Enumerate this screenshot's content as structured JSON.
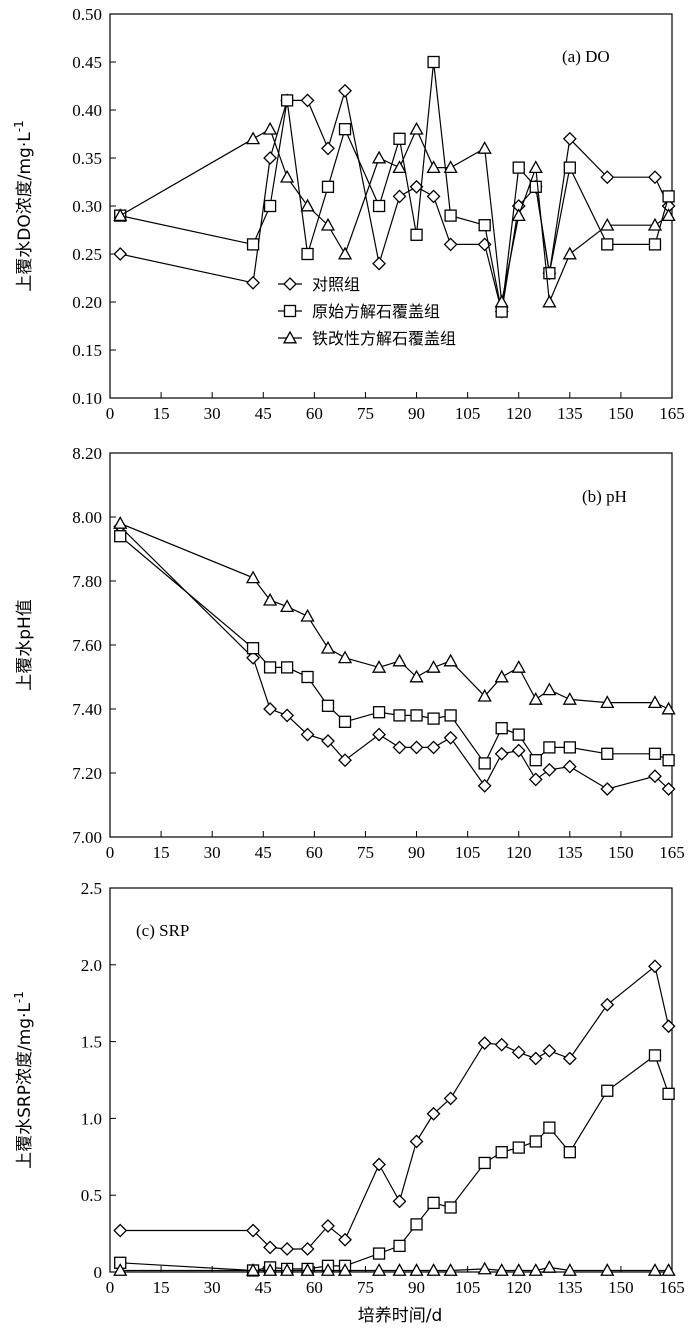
{
  "xlabel": "培养时间/d",
  "chart_data": [
    {
      "type": "line",
      "annotation": "(a) DO",
      "ylabel": "上覆水DO浓度/mg·L",
      "ylabel_sup": "-1",
      "xlim": [
        0,
        165
      ],
      "ylim": [
        0.1,
        0.5
      ],
      "x_ticks": [
        0,
        15,
        30,
        45,
        60,
        75,
        90,
        105,
        120,
        135,
        150,
        165
      ],
      "y_ticks": [
        "0.10",
        "0.15",
        "0.20",
        "0.25",
        "0.30",
        "0.35",
        "0.40",
        "0.45",
        "0.50"
      ],
      "legend": "inside, lower-center",
      "series": [
        {
          "name": "对照组",
          "marker": "diamond",
          "x": [
            3,
            42,
            47,
            52,
            58,
            64,
            69,
            79,
            85,
            90,
            95,
            100,
            110,
            115,
            120,
            125,
            129,
            135,
            146,
            160,
            164
          ],
          "y": [
            0.25,
            0.22,
            0.35,
            0.41,
            0.41,
            0.36,
            0.42,
            0.24,
            0.31,
            0.32,
            0.31,
            0.26,
            0.26,
            0.19,
            0.3,
            0.32,
            0.23,
            0.37,
            0.33,
            0.33,
            0.3
          ]
        },
        {
          "name": "原始方解石覆盖组",
          "marker": "square",
          "x": [
            3,
            42,
            47,
            52,
            58,
            64,
            69,
            79,
            85,
            90,
            95,
            100,
            110,
            115,
            120,
            125,
            129,
            135,
            146,
            160,
            164
          ],
          "y": [
            0.29,
            0.26,
            0.3,
            0.41,
            0.25,
            0.32,
            0.38,
            0.3,
            0.37,
            0.27,
            0.45,
            0.29,
            0.28,
            0.19,
            0.34,
            0.32,
            0.23,
            0.34,
            0.26,
            0.26,
            0.31
          ]
        },
        {
          "name": "铁改性方解石覆盖组",
          "marker": "triangle",
          "x": [
            3,
            42,
            47,
            52,
            58,
            64,
            69,
            79,
            85,
            90,
            95,
            100,
            110,
            115,
            120,
            125,
            129,
            135,
            146,
            160,
            164
          ],
          "y": [
            0.29,
            0.37,
            0.38,
            0.33,
            0.3,
            0.28,
            0.25,
            0.35,
            0.34,
            0.38,
            0.34,
            0.34,
            0.36,
            0.2,
            0.29,
            0.34,
            0.2,
            0.25,
            0.28,
            0.28,
            0.29
          ]
        }
      ]
    },
    {
      "type": "line",
      "annotation": "(b) pH",
      "ylabel": "上覆水pH值",
      "ylabel_sup": "",
      "xlim": [
        0,
        165
      ],
      "ylim": [
        7.0,
        8.2
      ],
      "x_ticks": [
        0,
        15,
        30,
        45,
        60,
        75,
        90,
        105,
        120,
        135,
        150,
        165
      ],
      "y_ticks": [
        "7.00",
        "7.20",
        "7.40",
        "7.60",
        "7.80",
        "8.00",
        "8.20"
      ],
      "series": [
        {
          "marker": "diamond",
          "x": [
            3,
            42,
            47,
            52,
            58,
            64,
            69,
            79,
            85,
            90,
            95,
            100,
            110,
            115,
            120,
            125,
            129,
            135,
            146,
            160,
            164
          ],
          "y": [
            7.97,
            7.56,
            7.4,
            7.38,
            7.32,
            7.3,
            7.24,
            7.32,
            7.28,
            7.28,
            7.28,
            7.31,
            7.16,
            7.26,
            7.27,
            7.18,
            7.21,
            7.22,
            7.15,
            7.19,
            7.15
          ]
        },
        {
          "marker": "square",
          "x": [
            3,
            42,
            47,
            52,
            58,
            64,
            69,
            79,
            85,
            90,
            95,
            100,
            110,
            115,
            120,
            125,
            129,
            135,
            146,
            160,
            164
          ],
          "y": [
            7.94,
            7.59,
            7.53,
            7.53,
            7.5,
            7.41,
            7.36,
            7.39,
            7.38,
            7.38,
            7.37,
            7.38,
            7.23,
            7.34,
            7.32,
            7.24,
            7.28,
            7.28,
            7.26,
            7.26,
            7.24
          ]
        },
        {
          "marker": "triangle",
          "x": [
            3,
            42,
            47,
            52,
            58,
            64,
            69,
            79,
            85,
            90,
            95,
            100,
            110,
            115,
            120,
            125,
            129,
            135,
            146,
            160,
            164
          ],
          "y": [
            7.98,
            7.81,
            7.74,
            7.72,
            7.69,
            7.59,
            7.56,
            7.53,
            7.55,
            7.5,
            7.53,
            7.55,
            7.44,
            7.5,
            7.53,
            7.43,
            7.46,
            7.43,
            7.42,
            7.42,
            7.4
          ]
        }
      ]
    },
    {
      "type": "line",
      "annotation": "(c) SRP",
      "ylabel": "上覆水SRP浓度/mg·L",
      "ylabel_sup": "-1",
      "xlim": [
        0,
        165
      ],
      "ylim": [
        0,
        2.5
      ],
      "x_ticks": [
        0,
        15,
        30,
        45,
        60,
        75,
        90,
        105,
        120,
        135,
        150,
        165
      ],
      "y_ticks": [
        "0",
        "0.5",
        "1.0",
        "1.5",
        "2.0",
        "2.5"
      ],
      "series": [
        {
          "marker": "diamond",
          "x": [
            3,
            42,
            47,
            52,
            58,
            64,
            69,
            79,
            85,
            90,
            95,
            100,
            110,
            115,
            120,
            125,
            129,
            135,
            146,
            160,
            164
          ],
          "y": [
            0.27,
            0.27,
            0.16,
            0.15,
            0.15,
            0.3,
            0.21,
            0.7,
            0.46,
            0.85,
            1.03,
            1.13,
            1.49,
            1.48,
            1.43,
            1.39,
            1.44,
            1.39,
            1.74,
            1.99,
            1.6
          ]
        },
        {
          "marker": "square",
          "x": [
            3,
            42,
            47,
            52,
            58,
            64,
            69,
            79,
            85,
            90,
            95,
            100,
            110,
            115,
            120,
            125,
            129,
            135,
            146,
            160,
            164
          ],
          "y": [
            0.06,
            0.01,
            0.03,
            0.02,
            0.02,
            0.04,
            0.04,
            0.12,
            0.17,
            0.31,
            0.45,
            0.42,
            0.71,
            0.78,
            0.81,
            0.85,
            0.94,
            0.78,
            1.18,
            1.41,
            1.16
          ]
        },
        {
          "marker": "triangle",
          "x": [
            3,
            42,
            47,
            52,
            58,
            64,
            69,
            79,
            85,
            90,
            95,
            100,
            110,
            115,
            120,
            125,
            129,
            135,
            146,
            160,
            164
          ],
          "y": [
            0.01,
            0.01,
            0.01,
            0.01,
            0.01,
            0.01,
            0.01,
            0.01,
            0.01,
            0.01,
            0.01,
            0.01,
            0.02,
            0.01,
            0.01,
            0.01,
            0.03,
            0.01,
            0.01,
            0.01,
            0.01
          ]
        }
      ]
    }
  ]
}
